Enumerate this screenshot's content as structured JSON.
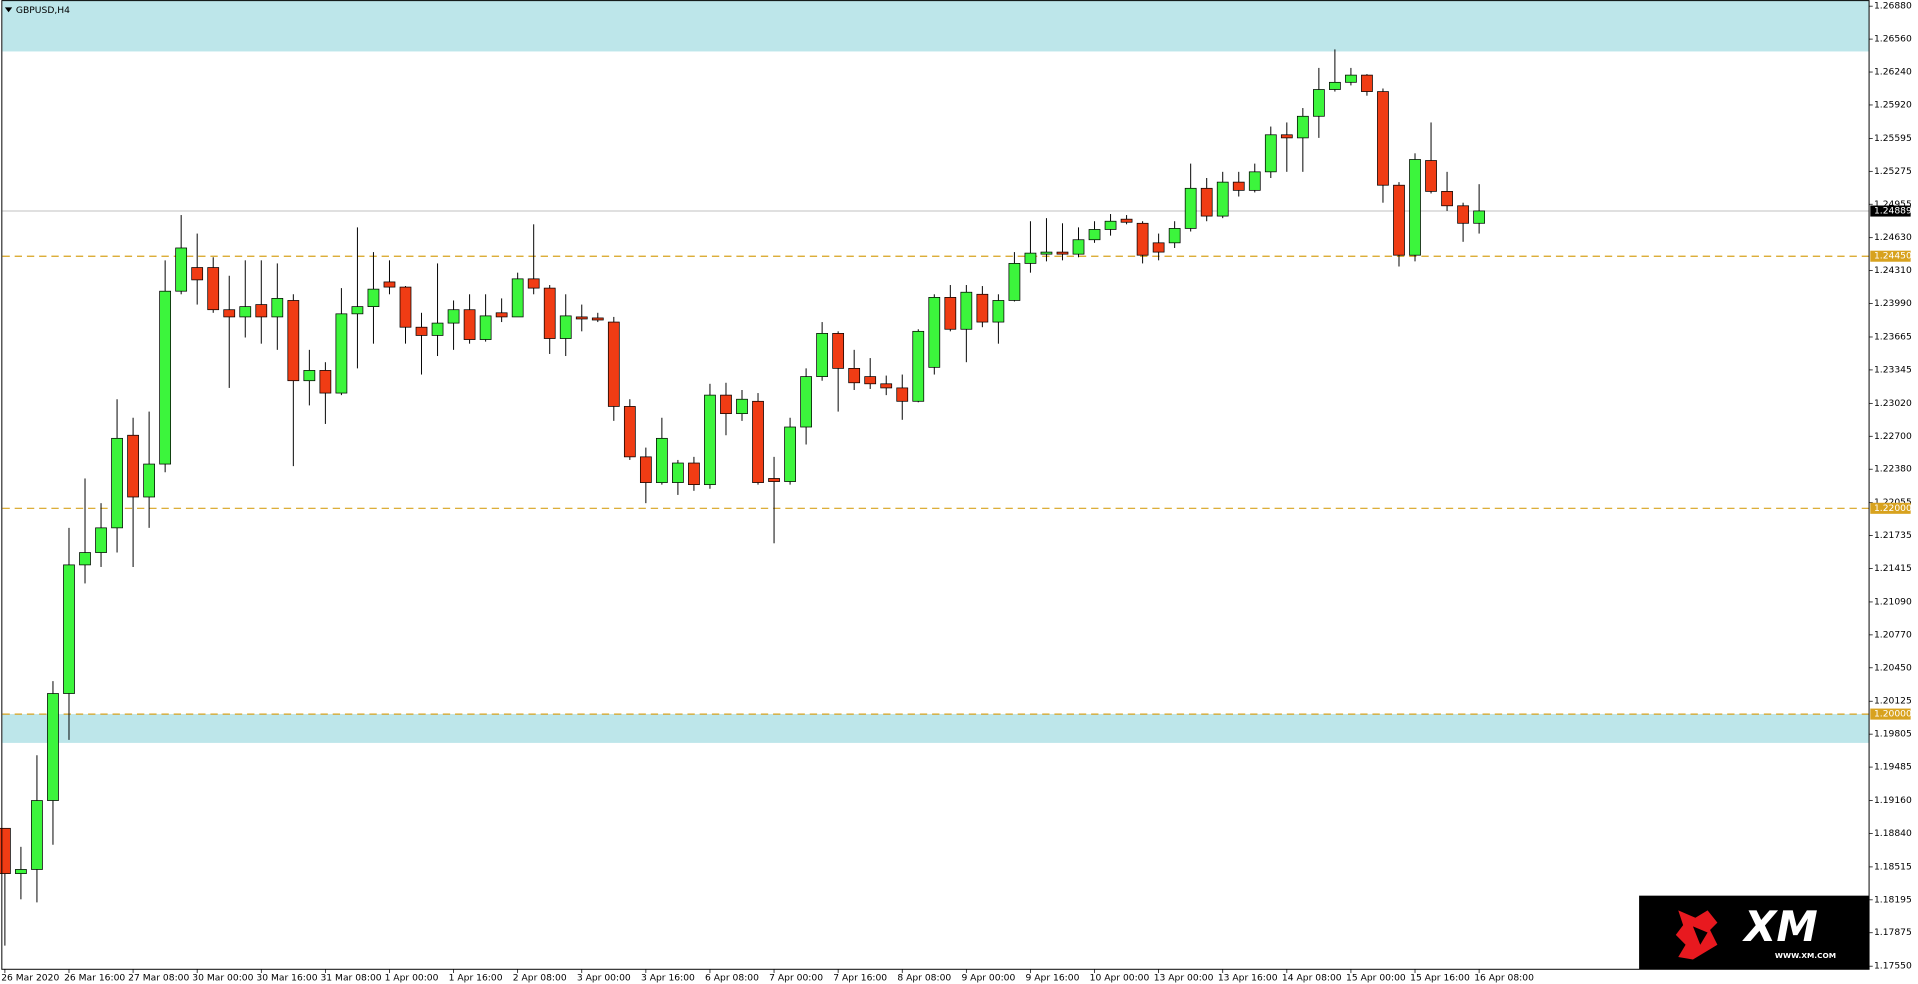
{
  "chart_data": {
    "type": "candlestick",
    "title": "GBPUSD,H4",
    "open": [
      1.1889,
      1.1845,
      1.1849,
      1.1916,
      1.202,
      1.2145,
      1.2157,
      1.2181,
      1.2271,
      1.2211,
      1.2243,
      1.2411,
      1.2434,
      1.2434,
      1.2393,
      1.2386,
      1.2398,
      1.2386,
      1.2402,
      1.2324,
      1.2334,
      1.2312,
      1.2389,
      1.2396,
      1.242,
      1.2415,
      1.2376,
      1.2368,
      1.238,
      1.2393,
      1.2364,
      1.239,
      1.2386,
      1.2423,
      1.2414,
      1.2365,
      1.2386,
      1.2385,
      1.2381,
      1.2299,
      1.225,
      1.2225,
      1.2225,
      1.2244,
      1.2223,
      1.231,
      1.2292,
      1.2304,
      1.2229,
      1.2226,
      1.2279,
      1.2328,
      1.237,
      1.2336,
      1.2328,
      1.2321,
      1.2317,
      1.2304,
      1.2337,
      1.2405,
      1.2374,
      1.2408,
      1.2381,
      1.2402,
      1.2438,
      1.2447,
      1.2449,
      1.2447,
      1.2461,
      1.2471,
      1.2481,
      1.2477,
      1.2458,
      1.2458,
      1.2472,
      1.2511,
      1.2484,
      1.2517,
      1.2509,
      1.2527,
      1.2563,
      1.256,
      1.2581,
      1.2607,
      1.2614,
      1.2621,
      1.2605,
      1.2514,
      1.2446,
      1.2538,
      1.2508,
      1.2494,
      1.2477
    ],
    "high": [
      1.1889,
      1.1871,
      1.196,
      1.2032,
      1.2181,
      1.2229,
      1.2205,
      1.2306,
      1.2288,
      1.2294,
      1.2441,
      1.2485,
      1.2467,
      1.2444,
      1.2426,
      1.2441,
      1.2441,
      1.2438,
      1.2408,
      1.2354,
      1.2342,
      1.2414,
      1.2473,
      1.2449,
      1.2441,
      1.2416,
      1.239,
      1.2438,
      1.2402,
      1.2408,
      1.2408,
      1.2404,
      1.2429,
      1.2476,
      1.2417,
      1.2408,
      1.2398,
      1.239,
      1.2386,
      1.2306,
      1.2259,
      1.2288,
      1.2247,
      1.225,
      1.2321,
      1.2322,
      1.2315,
      1.2312,
      1.225,
      1.2288,
      1.2336,
      1.2381,
      1.2372,
      1.2354,
      1.2346,
      1.2329,
      1.233,
      1.2374,
      1.2408,
      1.2417,
      1.2417,
      1.2416,
      1.2408,
      1.2449,
      1.2479,
      1.2482,
      1.2477,
      1.2473,
      1.2479,
      1.2486,
      1.2485,
      1.2479,
      1.2467,
      1.2479,
      1.2535,
      1.2521,
      1.2527,
      1.2527,
      1.2535,
      1.2571,
      1.2575,
      1.2589,
      1.2628,
      1.2646,
      1.2628,
      1.2622,
      1.2608,
      1.2517,
      1.2545,
      1.2575,
      1.2527,
      1.2497,
      1.2515
    ],
    "low": [
      1.1775,
      1.182,
      1.1817,
      1.1873,
      1.1975,
      1.2127,
      1.2143,
      1.2157,
      1.2143,
      1.2181,
      1.2235,
      1.2408,
      1.2398,
      1.239,
      1.2317,
      1.2366,
      1.236,
      1.2354,
      1.2241,
      1.23,
      1.2282,
      1.231,
      1.2336,
      1.236,
      1.2408,
      1.236,
      1.233,
      1.2348,
      1.2354,
      1.236,
      1.2362,
      1.2381,
      1.2386,
      1.2408,
      1.235,
      1.2348,
      1.2372,
      1.2381,
      1.2285,
      1.2247,
      1.2205,
      1.2223,
      1.2213,
      1.2217,
      1.2219,
      1.2271,
      1.2285,
      1.2223,
      1.2166,
      1.2223,
      1.2262,
      1.2324,
      1.2294,
      1.2315,
      1.2316,
      1.231,
      1.2286,
      1.2303,
      1.233,
      1.2372,
      1.2342,
      1.2376,
      1.236,
      1.2401,
      1.2429,
      1.244,
      1.2441,
      1.2444,
      1.2458,
      1.2465,
      1.2476,
      1.2438,
      1.2441,
      1.2453,
      1.2469,
      1.2479,
      1.2482,
      1.2503,
      1.2507,
      1.2521,
      1.2527,
      1.2527,
      1.256,
      1.2605,
      1.2611,
      1.2601,
      1.2497,
      1.2435,
      1.244,
      1.2506,
      1.2489,
      1.2459,
      1.2467
    ],
    "close": [
      1.1845,
      1.1849,
      1.1916,
      1.202,
      1.2145,
      1.2157,
      1.2181,
      1.2268,
      1.2211,
      1.2243,
      1.2411,
      1.2453,
      1.2422,
      1.2393,
      1.2386,
      1.2396,
      1.2386,
      1.2404,
      1.2324,
      1.2334,
      1.2312,
      1.2389,
      1.2396,
      1.2413,
      1.2415,
      1.2376,
      1.2368,
      1.238,
      1.2393,
      1.2364,
      1.2387,
      1.2386,
      1.2423,
      1.2414,
      1.2365,
      1.2387,
      1.2384,
      1.2383,
      1.2299,
      1.225,
      1.2225,
      1.2268,
      1.2244,
      1.2223,
      1.231,
      1.2292,
      1.2306,
      1.2225,
      1.2226,
      1.2279,
      1.2328,
      1.237,
      1.2336,
      1.2322,
      1.2321,
      1.2317,
      1.2304,
      1.2372,
      1.2405,
      1.2374,
      1.241,
      1.2381,
      1.2402,
      1.2438,
      1.2448,
      1.2449,
      1.2447,
      1.2461,
      1.2471,
      1.2479,
      1.2478,
      1.2446,
      1.2449,
      1.2472,
      1.2511,
      1.2484,
      1.2517,
      1.2509,
      1.2527,
      1.2563,
      1.256,
      1.2581,
      1.2607,
      1.2614,
      1.2621,
      1.2605,
      1.2514,
      1.2446,
      1.2539,
      1.2508,
      1.2494,
      1.2477,
      1.2489
    ],
    "x_labels": [
      "26 Mar 2020",
      "26 Mar 16:00",
      "27 Mar 08:00",
      "30 Mar 00:00",
      "30 Mar 16:00",
      "31 Mar 08:00",
      "1 Apr 00:00",
      "1 Apr 16:00",
      "2 Apr 08:00",
      "3 Apr 00:00",
      "3 Apr 16:00",
      "6 Apr 08:00",
      "7 Apr 00:00",
      "7 Apr 16:00",
      "8 Apr 08:00",
      "9 Apr 00:00",
      "9 Apr 16:00",
      "10 Apr 00:00",
      "13 Apr 00:00",
      "13 Apr 16:00",
      "14 Apr 08:00",
      "15 Apr 00:00",
      "15 Apr 16:00",
      "16 Apr 08:00"
    ],
    "ylim": [
      1.1752,
      1.2694
    ],
    "yticks": [
      {
        "value": 1.2688,
        "label": "1.26880"
      },
      {
        "value": 1.2656,
        "label": "1.26560"
      },
      {
        "value": 1.2624,
        "label": "1.26240"
      },
      {
        "value": 1.2592,
        "label": "1.25920"
      },
      1.25595,
      1.25275,
      1.24955,
      {
        "value": 1.2463,
        "label": "1.24630"
      },
      {
        "value": 1.2431,
        "label": "1.24310"
      },
      {
        "value": 1.2399,
        "label": "1.23990"
      },
      1.23665,
      1.23345,
      {
        "value": 1.2302,
        "label": "1.23020"
      },
      {
        "value": 1.227,
        "label": "1.22700"
      },
      {
        "value": 1.2238,
        "label": "1.22380"
      },
      1.22055,
      1.21735,
      1.21415,
      {
        "value": 1.2109,
        "label": "1.21090"
      },
      {
        "value": 1.2077,
        "label": "1.20770"
      },
      {
        "value": 1.2045,
        "label": "1.20450"
      },
      1.20125,
      1.19805,
      1.19485,
      {
        "value": 1.1916,
        "label": "1.19160"
      },
      {
        "value": 1.1884,
        "label": "1.18840"
      },
      1.18515,
      1.18195,
      1.17875,
      {
        "value": 1.1755,
        "label": "1.17550"
      }
    ],
    "up_color": "#3cf53c",
    "down_color": "#f03c14",
    "zones": [
      [
        1.2644,
        1.2694
      ],
      [
        1.1972,
        1.2
      ]
    ],
    "zone_color": "#bde6ea",
    "levels": [
      {
        "value": 1.2445,
        "label": "1.24450"
      },
      {
        "value": 1.22,
        "label": "1.22000"
      },
      {
        "value": 1.2,
        "label": "1.20000"
      }
    ],
    "level_color": "#d8a21e",
    "current": {
      "value": 1.24889,
      "label": "1.24889"
    },
    "logo": {
      "brand": "XM",
      "url": "WWW.XM.COM"
    }
  }
}
